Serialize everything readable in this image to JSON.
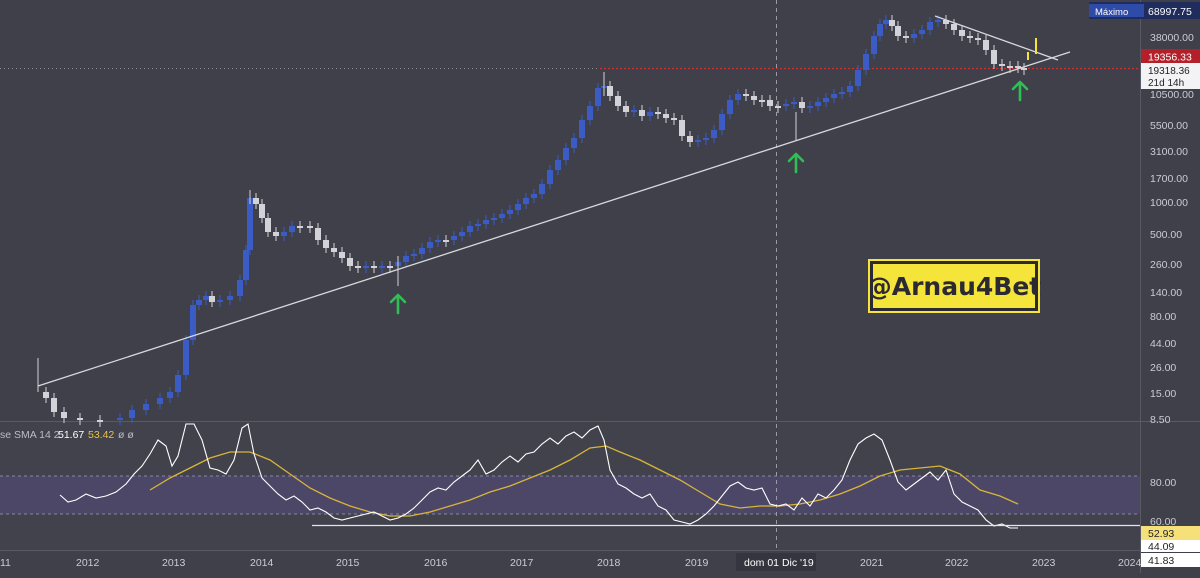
{
  "colors": {
    "background": "#3f404a",
    "up_candle": "#3b5cc4",
    "down_candle": "#d2d2d8",
    "rsi_line": "#ffffff",
    "rsi_sma": "#d8b53a",
    "rsi_band": "#4c4767",
    "support_level": "#d12c2c",
    "arrow": "#2fbf54",
    "watermark_bg": "#f5e53b",
    "watermark_text": "#2b2a33"
  },
  "top_label": {
    "text": "Máximo",
    "value": "68997.75"
  },
  "price_labels": {
    "last": "19356.33",
    "close": "19318.36",
    "countdown": "21d 14h"
  },
  "watermark": "@Arnau4Bet",
  "crosshair_date": "dom 01 Dic '19",
  "rsi_header": {
    "name": "se SMA 14 2",
    "value1": "51.67",
    "value2": "53.42",
    "extra": "ø ø"
  },
  "rsi_labels": [
    "52.93",
    "44.09",
    "41.83"
  ],
  "chart_data": [
    {
      "type": "candlestick",
      "scale": "log",
      "x_ticks": [
        "11",
        "2012",
        "2013",
        "2014",
        "2015",
        "2016",
        "2017",
        "2018",
        "2019",
        "2020",
        "2021",
        "2022",
        "2023",
        "2024"
      ],
      "y_ticks": [
        "38000.00",
        "10500.00",
        "5500.00",
        "3100.00",
        "1700.00",
        "1000.00",
        "500.00",
        "260.00",
        "140.00",
        "80.00",
        "44.00",
        "26.00",
        "15.00",
        "8.50"
      ],
      "ylim": [
        8.5,
        90000
      ],
      "highlight_level": 19356.33,
      "trendline": {
        "from": [
          "2011-08",
          18
        ],
        "to": [
          "2023-04",
          19356
        ]
      },
      "arrows_at": [
        [
          "2015-07",
          150
        ],
        [
          "2020-03",
          3000
        ],
        [
          "2022-11",
          12500
        ]
      ]
    },
    {
      "type": "line",
      "name": "RSI",
      "ylim": [
        35,
        100
      ],
      "y_ticks": [
        "80.00",
        "60.00"
      ],
      "band": [
        30,
        70
      ],
      "baseline": 41.83
    }
  ]
}
